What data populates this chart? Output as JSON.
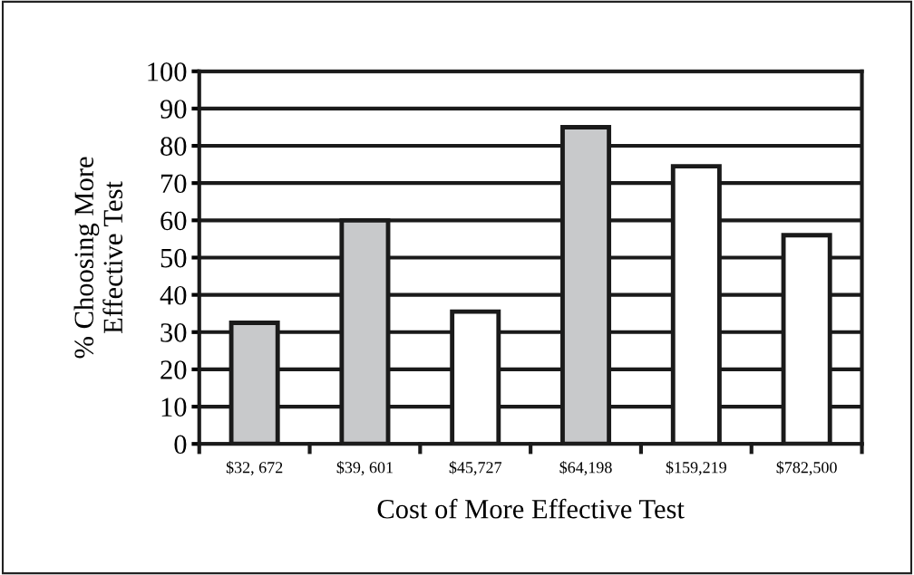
{
  "chart_data": {
    "type": "bar",
    "xlabel": "Cost of More Effective Test",
    "ylabel": "% Choosing More\nEffective Test",
    "categories": [
      "$32, 672",
      "$39, 601",
      "$45,727",
      "$64,198",
      "$159,219",
      "$782,500"
    ],
    "values": [
      32.5,
      60,
      35.5,
      85,
      74.5,
      56
    ],
    "colors": [
      "#c8c9cb",
      "#c8c9cb",
      "#ffffff",
      "#c8c9cb",
      "#ffffff",
      "#ffffff"
    ],
    "ylim": [
      0,
      100
    ],
    "yticks": [
      0,
      10,
      20,
      30,
      40,
      50,
      60,
      70,
      80,
      90,
      100
    ],
    "grid": "y",
    "legend": false
  }
}
